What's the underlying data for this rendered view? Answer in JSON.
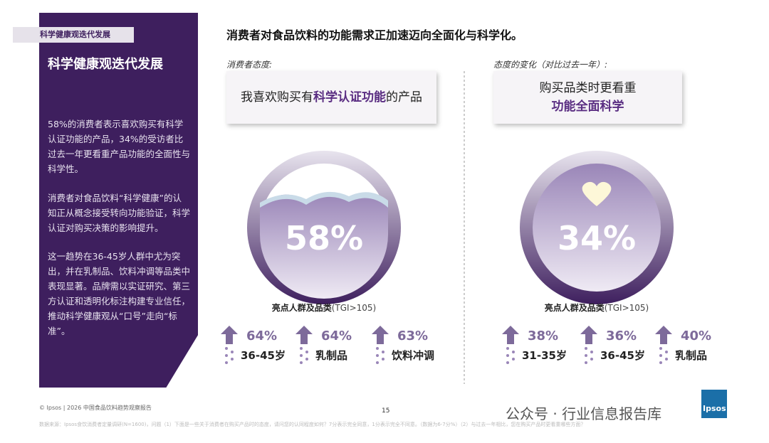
{
  "sidebar": {
    "tag": "科学健康观迭代发展",
    "title": "科学健康观迭代发展",
    "paragraphs": [
      "58%的消费者表示喜欢购买有科学认证功能的产品，34%的受访者比过去一年更看重产品功能的全面性与科学性。",
      "消费者对食品饮料“科学健康”的认知正从概念接受转向功能验证，科学认证对购买决策的影响提升。",
      "这一趋势在36-45岁人群中尤为突出，并在乳制品、饮料冲调等品类中表现显著。品牌需以实证研究、第三方认证和透明化标注构建专业信任，推动科学健康观从“口号”走向“标准”。"
    ]
  },
  "headline": "消费者对食品饮料的功能需求正加速迈向全面化与科学化。",
  "panels": [
    {
      "label": "消费者态度:",
      "statement": [
        "我喜欢购买有",
        "科学认证功能",
        "的产品"
      ],
      "big_value": "58%",
      "highlight_title": "亮点人群及品类",
      "highlight_note": "(TGI>105)",
      "items": [
        {
          "value": "64%",
          "label": "36-45岁"
        },
        {
          "value": "64%",
          "label": "乳制品"
        },
        {
          "value": "63%",
          "label": "饮料冲调"
        }
      ]
    },
    {
      "label": "态度的变化（对比过去一年）:",
      "statement": [
        "购买品类时更看重",
        "功能全面科学"
      ],
      "big_value": "34%",
      "highlight_title": "亮点人群及品类",
      "highlight_note": "(TGI>105)",
      "items": [
        {
          "value": "38%",
          "label": "31-35岁"
        },
        {
          "value": "36%",
          "label": "36-45岁"
        },
        {
          "value": "40%",
          "label": "乳制品"
        }
      ]
    }
  ],
  "footer": {
    "copyright": "© Ipsos | 2026 中国食品饮料趋势观察报告",
    "page": "15",
    "source": "数据来源：Ipsos食饮消费者定量调研(N=1600)，问题（1）下面是一些关于消费者在购买产品时的态度，请问您的认同程度如何？7分表示完全同意，1分表示完全不同意。（数据为6-7分%）（2）与过去一年相比，您在购买产品时更看重哪些方面？",
    "watermark": "公众号 · 行业信息报告库",
    "logo": "Ipsos"
  }
}
